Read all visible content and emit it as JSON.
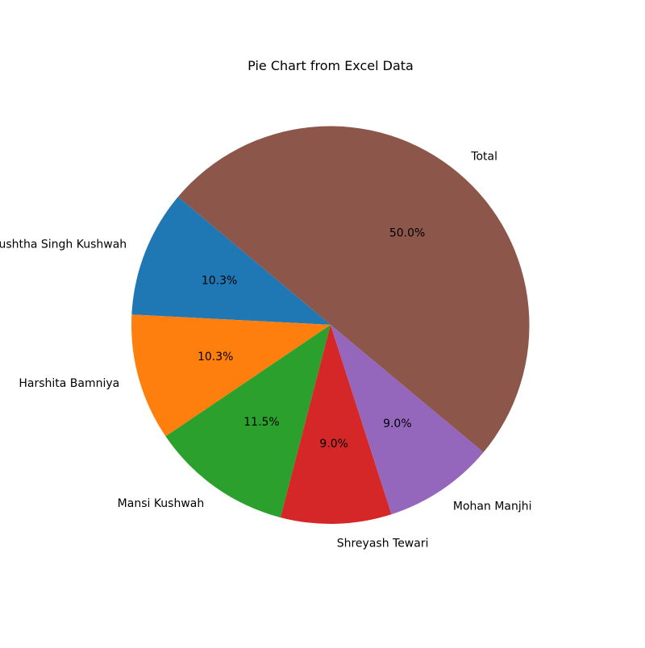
{
  "chart_data": {
    "type": "pie",
    "title": "Pie Chart from Excel Data",
    "start_angle_deg": 140,
    "direction": "counterclockwise",
    "slices": [
      {
        "label": "Anushtha Singh Kushwah",
        "value": 10.3,
        "pct_label": "10.3%",
        "color": "#1f77b4"
      },
      {
        "label": "Harshita Bamniya",
        "value": 10.3,
        "pct_label": "10.3%",
        "color": "#ff7f0e"
      },
      {
        "label": "Mansi Kushwah",
        "value": 11.5,
        "pct_label": "11.5%",
        "color": "#2ca02c"
      },
      {
        "label": "Shreyash Tewari",
        "value": 9.0,
        "pct_label": "9.0%",
        "color": "#d62728"
      },
      {
        "label": "Mohan Manjhi",
        "value": 9.0,
        "pct_label": "9.0%",
        "color": "#9467bd"
      },
      {
        "label": "Total",
        "value": 50.0,
        "pct_label": "50.0%",
        "color": "#8c564b"
      }
    ]
  }
}
